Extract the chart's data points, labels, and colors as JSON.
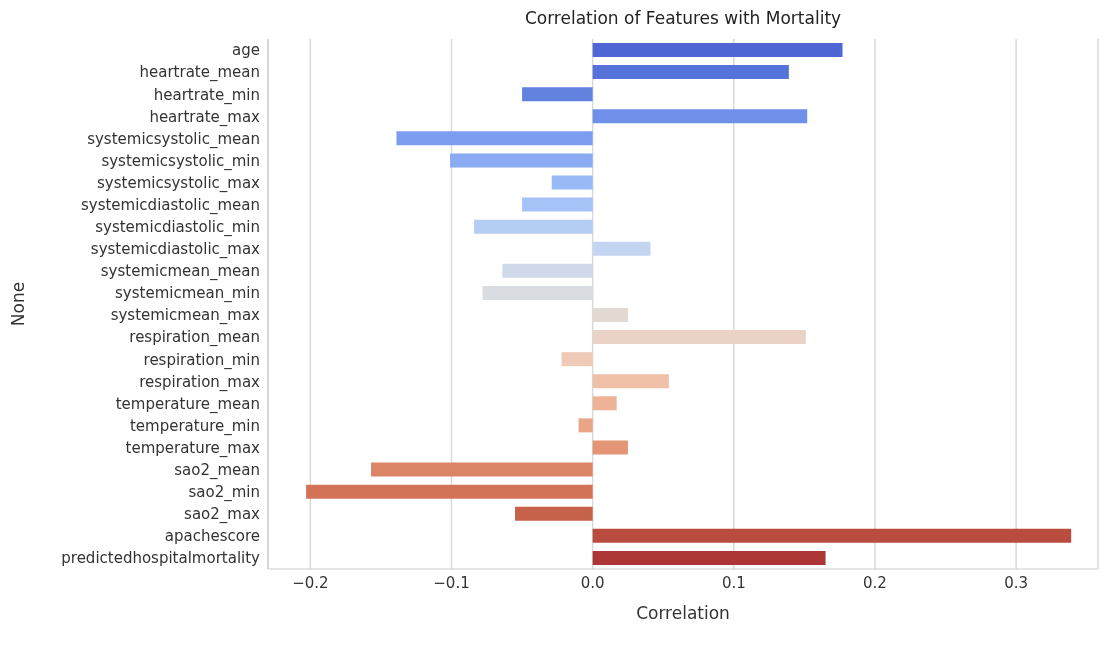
{
  "chart_data": {
    "type": "bar",
    "orientation": "horizontal",
    "title": "Correlation of Features with Mortality",
    "xlabel": "Correlation",
    "ylabel": "None",
    "categories": [
      "age",
      "heartrate_mean",
      "heartrate_min",
      "heartrate_max",
      "systemicsystolic_mean",
      "systemicsystolic_min",
      "systemicsystolic_max",
      "systemicdiastolic_mean",
      "systemicdiastolic_min",
      "systemicdiastolic_max",
      "systemicmean_mean",
      "systemicmean_min",
      "systemicmean_max",
      "respiration_mean",
      "respiration_min",
      "respiration_max",
      "temperature_mean",
      "temperature_min",
      "temperature_max",
      "sao2_mean",
      "sao2_min",
      "sao2_max",
      "apachescore",
      "predictedhospitalmortality"
    ],
    "values": [
      0.177,
      0.139,
      -0.05,
      0.152,
      -0.139,
      -0.101,
      -0.029,
      -0.05,
      -0.084,
      0.041,
      -0.064,
      -0.078,
      0.025,
      0.151,
      -0.022,
      0.054,
      0.017,
      -0.01,
      0.025,
      -0.157,
      -0.203,
      -0.055,
      0.339,
      0.165
    ],
    "colors": [
      "#4f66d4",
      "#5673d9",
      "#6282e0",
      "#6f90e8",
      "#7d9df0",
      "#8aaaf3",
      "#98b8f6",
      "#a6c3f7",
      "#b4cdf5",
      "#c3d5f0",
      "#cfd9e9",
      "#d9dce1",
      "#e3d9d3",
      "#ead3c6",
      "#eecab7",
      "#efbfa7",
      "#eeb297",
      "#eaa486",
      "#e49576",
      "#dc8466",
      "#d27357",
      "#c6614a",
      "#b94c3e",
      "#ac3536"
    ],
    "xlim": [
      -0.23,
      0.358
    ],
    "xticks": [
      {
        "value": -0.2,
        "label": "−0.2"
      },
      {
        "value": -0.1,
        "label": "−0.1"
      },
      {
        "value": 0,
        "label": "0.0"
      },
      {
        "value": 0.1,
        "label": "0.1"
      },
      {
        "value": 0.2,
        "label": "0.2"
      },
      {
        "value": 0.3,
        "label": "0.3"
      }
    ],
    "grid": "x"
  }
}
